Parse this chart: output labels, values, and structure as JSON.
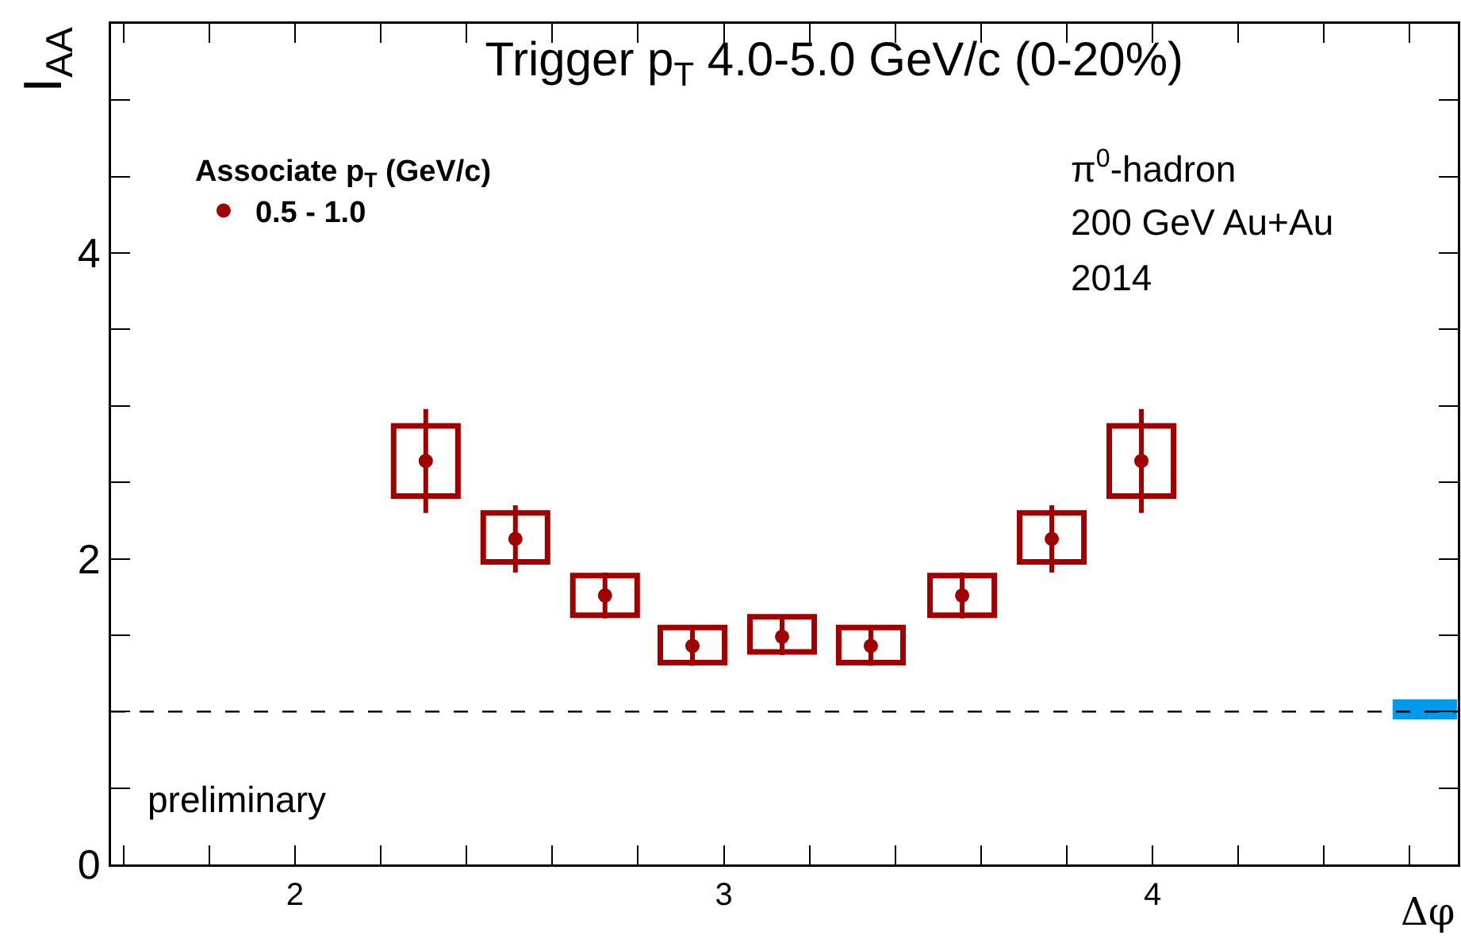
{
  "chart_data": {
    "type": "scatter",
    "title": "Trigger p$_{T}$ 4.0-5.0 GeV/c (0-20%)",
    "xlabel": "Δφ",
    "ylabel": "I$_{AA}$",
    "legend_title": "Associate p$_{T}$ (GeV/c)",
    "x": [
      2.305,
      2.514,
      2.723,
      2.927,
      3.136,
      3.343,
      3.556,
      3.765,
      3.974
    ],
    "series": [
      {
        "name": "0.5 - 1.0",
        "color": "#a00000",
        "values": [
          2.64,
          2.13,
          1.76,
          1.43,
          1.49,
          1.43,
          1.76,
          2.13,
          2.64
        ],
        "errors": [
          0.34,
          0.22,
          0.15,
          0.13,
          0.12,
          0.13,
          0.15,
          0.22,
          0.34
        ]
      },
      {
        "type": "bar",
        "color": "#a00000",
        "line_style": "solid",
        "base": [
          2.41,
          1.98,
          1.63,
          1.32,
          1.39,
          1.32,
          1.63,
          1.98,
          2.41
        ],
        "values": [
          0.46,
          0.32,
          0.26,
          0.23,
          0.23,
          0.23,
          0.26,
          0.32,
          0.46
        ]
      },
      {
        "type": "bar",
        "color": "#0099ee",
        "x": [
          4.635
        ],
        "base": [
          0.95
        ],
        "values": [
          0.13
        ]
      }
    ],
    "ref_lines": [
      {
        "axis": "y",
        "value": 1,
        "color": "#000000",
        "line_style": "dashed"
      }
    ],
    "annotations": [
      "π$^{0}$-hadron",
      "200 GeV Au+Au",
      "2014",
      "preliminary"
    ],
    "xlim": [
      1.571,
      4.712
    ],
    "ylim": [
      0,
      5.5
    ],
    "xticks": [
      {
        "value": 1.6,
        "label": null
      },
      {
        "value": 1.8,
        "label": null
      },
      2,
      {
        "value": 2.2,
        "label": null
      },
      {
        "value": 2.4,
        "label": null
      },
      {
        "value": 2.6,
        "label": null
      },
      {
        "value": 2.8,
        "label": null
      },
      3,
      {
        "value": 3.2,
        "label": null
      },
      {
        "value": 3.4,
        "label": null
      },
      {
        "value": 3.6,
        "label": null
      },
      {
        "value": 3.8,
        "label": null
      },
      4,
      {
        "value": 4.2,
        "label": null
      },
      {
        "value": 4.4,
        "label": null
      },
      {
        "value": 4.6,
        "label": null
      }
    ],
    "yticks": [
      0,
      {
        "value": 0.5,
        "label": null
      },
      {
        "value": 1,
        "label": null
      },
      {
        "value": 1.5,
        "label": null
      },
      2,
      {
        "value": 2.5,
        "label": null
      },
      {
        "value": 3,
        "label": null
      },
      {
        "value": 3.5,
        "label": null
      },
      4,
      {
        "value": 4.5,
        "label": null
      },
      {
        "value": 5,
        "label": null
      }
    ],
    "grid": false,
    "legend": "top left",
    "marker": "circle"
  }
}
